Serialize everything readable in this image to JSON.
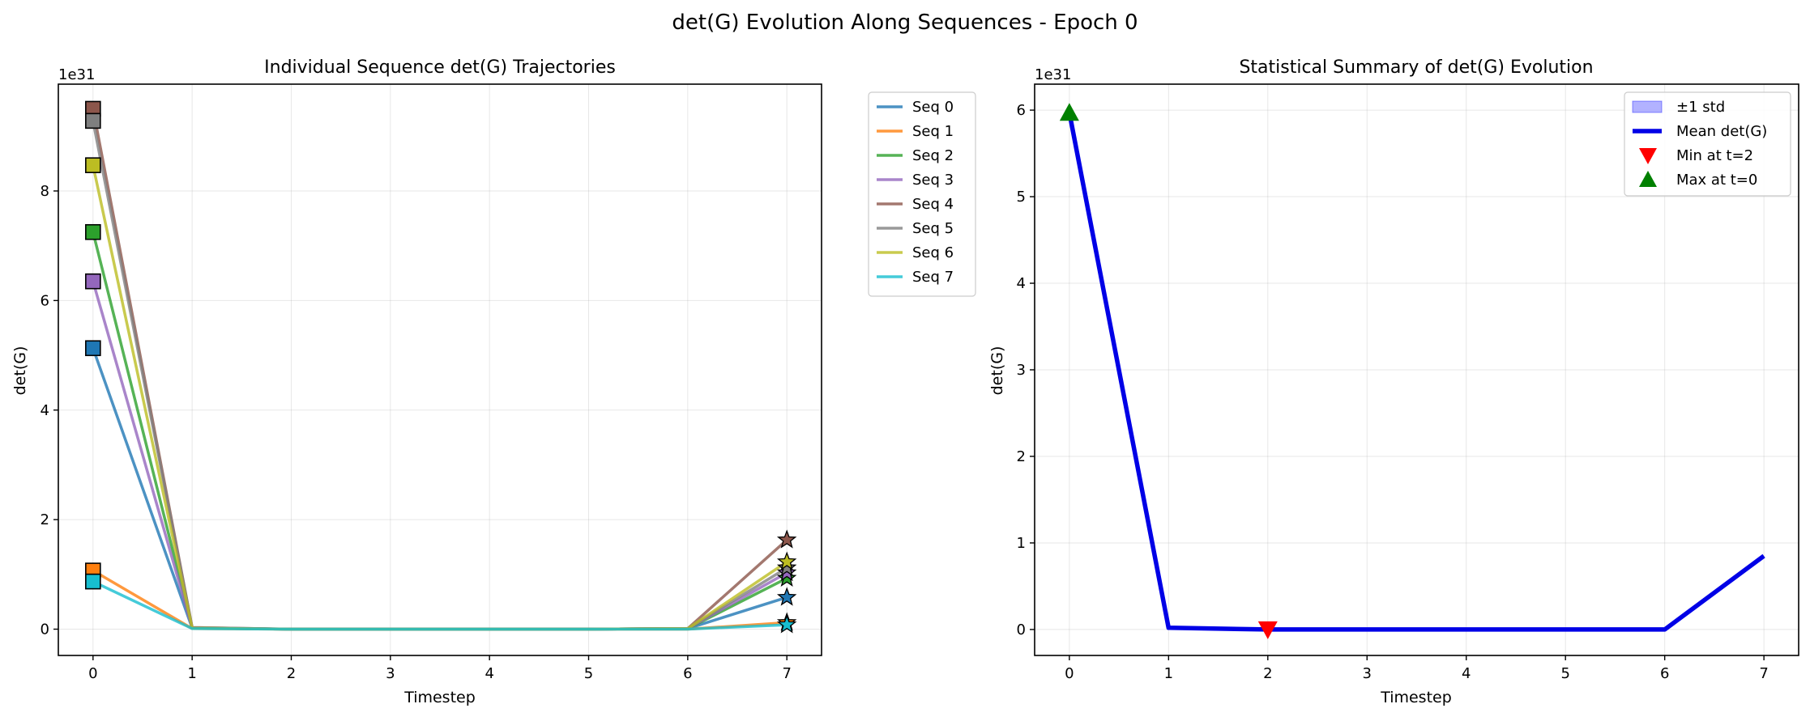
{
  "suptitle": "det(G) Evolution Along Sequences - Epoch 0",
  "chart_data": [
    {
      "type": "line",
      "title": "Individual Sequence det(G) Trajectories",
      "xlabel": "Timestep",
      "ylabel": "det(G)",
      "offset_label": "1e31",
      "xlim": [
        -0.35,
        7.35
      ],
      "ylim": [
        -0.48,
        9.95
      ],
      "x": [
        0,
        1,
        2,
        3,
        4,
        5,
        6,
        7
      ],
      "xticks": [
        "0",
        "1",
        "2",
        "3",
        "4",
        "5",
        "6",
        "7"
      ],
      "yticks": [
        0,
        2,
        4,
        6,
        8
      ],
      "ytick_labels": [
        "0",
        "2",
        "4",
        "6",
        "8"
      ],
      "grid": true,
      "legend_position": "outside-right",
      "start_marker": "square",
      "end_marker": "star",
      "series": [
        {
          "name": "Seq 0",
          "color": "#1f77b4",
          "values": [
            5.13,
            0.02,
            0.0,
            0.0,
            0.0,
            0.0,
            0.01,
            0.58
          ]
        },
        {
          "name": "Seq 1",
          "color": "#ff7f0e",
          "values": [
            1.07,
            0.01,
            0.0,
            0.0,
            0.0,
            0.0,
            0.0,
            0.12
          ]
        },
        {
          "name": "Seq 2",
          "color": "#2ca02c",
          "values": [
            7.25,
            0.02,
            0.0,
            0.0,
            0.0,
            0.0,
            0.01,
            0.93
          ]
        },
        {
          "name": "Seq 3",
          "color": "#9467bd",
          "values": [
            6.35,
            0.02,
            0.0,
            0.0,
            0.0,
            0.0,
            0.01,
            1.03
          ]
        },
        {
          "name": "Seq 4",
          "color": "#8c564b",
          "values": [
            9.5,
            0.03,
            0.0,
            0.0,
            0.0,
            0.0,
            0.01,
            1.63
          ]
        },
        {
          "name": "Seq 5",
          "color": "#7f7f7f",
          "values": [
            9.28,
            0.03,
            0.0,
            0.0,
            0.0,
            0.0,
            0.01,
            1.12
          ]
        },
        {
          "name": "Seq 6",
          "color": "#bcbd22",
          "values": [
            8.47,
            0.02,
            0.0,
            0.0,
            0.0,
            0.0,
            0.01,
            1.23
          ]
        },
        {
          "name": "Seq 7",
          "color": "#17becf",
          "values": [
            0.87,
            0.01,
            0.0,
            0.0,
            0.0,
            0.0,
            0.0,
            0.08
          ]
        }
      ]
    },
    {
      "type": "line",
      "title": "Statistical Summary of det(G) Evolution",
      "xlabel": "Timestep",
      "ylabel": "det(G)",
      "offset_label": "1e31",
      "xlim": [
        -0.35,
        7.35
      ],
      "ylim": [
        -0.3,
        6.3
      ],
      "x": [
        0,
        1,
        2,
        3,
        4,
        5,
        6,
        7
      ],
      "xticks": [
        "0",
        "1",
        "2",
        "3",
        "4",
        "5",
        "6",
        "7"
      ],
      "yticks": [
        0,
        1,
        2,
        3,
        4,
        5,
        6
      ],
      "ytick_labels": [
        "0",
        "1",
        "2",
        "3",
        "4",
        "5",
        "6"
      ],
      "grid": true,
      "legend_position": "top-right",
      "series": [
        {
          "name": "Mean det(G)",
          "color": "#0000e6",
          "values": [
            5.97,
            0.02,
            0.0,
            0.0,
            0.0,
            0.0,
            0.0,
            0.85
          ]
        }
      ],
      "std_label": "±1 std",
      "min_marker": {
        "label": "Min at t=2",
        "x": 2,
        "y": 0.0,
        "color": "#ff0000"
      },
      "max_marker": {
        "label": "Max at t=0",
        "x": 0,
        "y": 5.97,
        "color": "#008000"
      }
    }
  ]
}
